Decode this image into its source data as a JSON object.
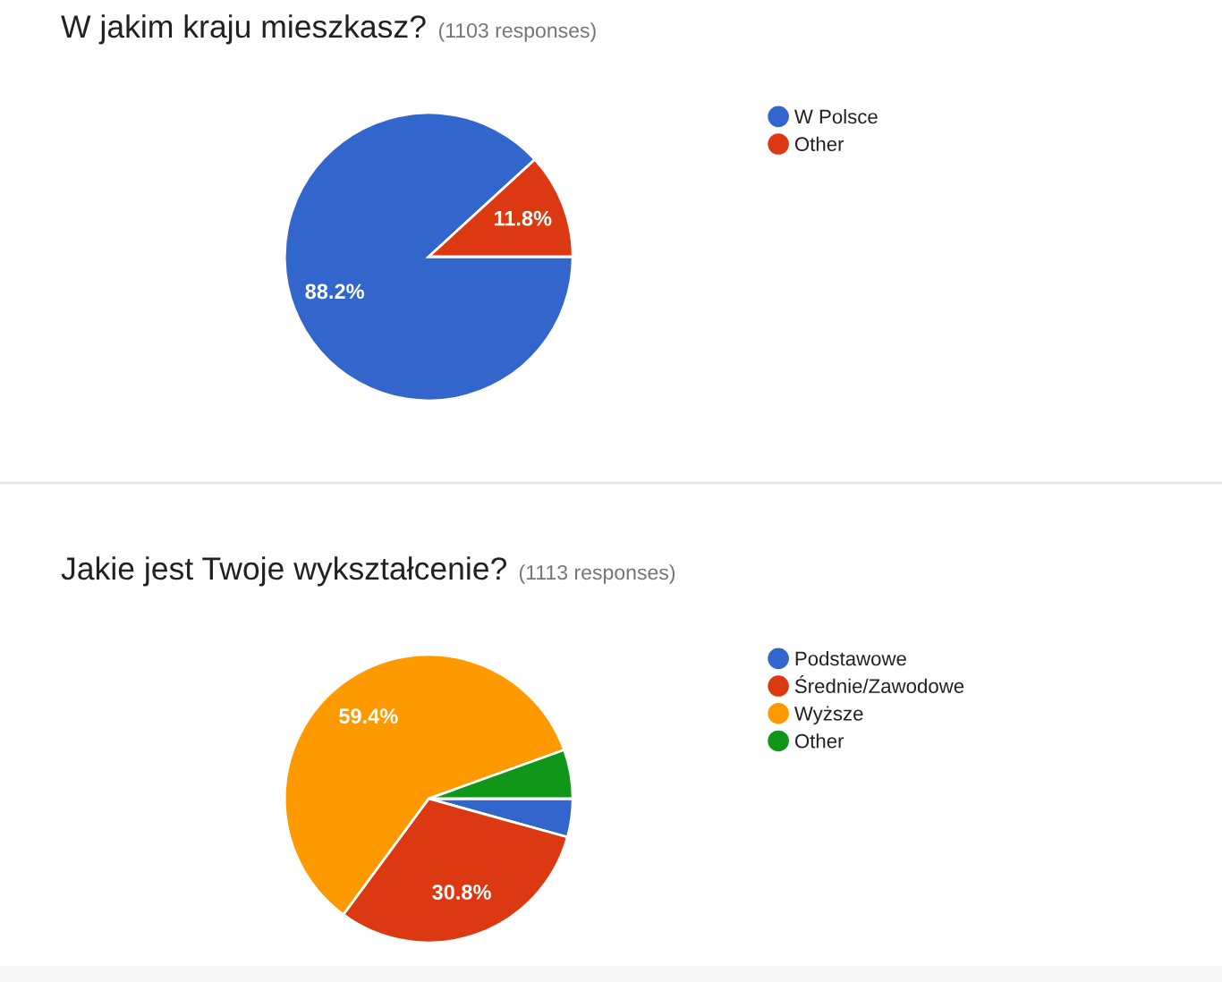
{
  "chart_data": [
    {
      "type": "pie",
      "title": "W jakim kraju mieszkasz?",
      "subtitle": "(1103 responses)",
      "categories": [
        "W Polsce",
        "Other"
      ],
      "values": [
        88.2,
        11.8
      ],
      "colors": [
        "#3366cc",
        "#dc3912"
      ],
      "value_labels": [
        "88.2%",
        "11.8%"
      ],
      "legend": "right"
    },
    {
      "type": "pie",
      "title": "Jakie jest Twoje wykształcenie?",
      "subtitle": "(1113 responses)",
      "categories": [
        "Podstawowe",
        "Średnie/Zawodowe",
        "Wyższe",
        "Other"
      ],
      "values": [
        4.3,
        30.8,
        59.4,
        5.5
      ],
      "colors": [
        "#3366cc",
        "#dc3912",
        "#ff9900",
        "#109618"
      ],
      "value_labels": [
        null,
        "30.8%",
        "59.4%",
        null
      ],
      "legend": "right"
    }
  ]
}
